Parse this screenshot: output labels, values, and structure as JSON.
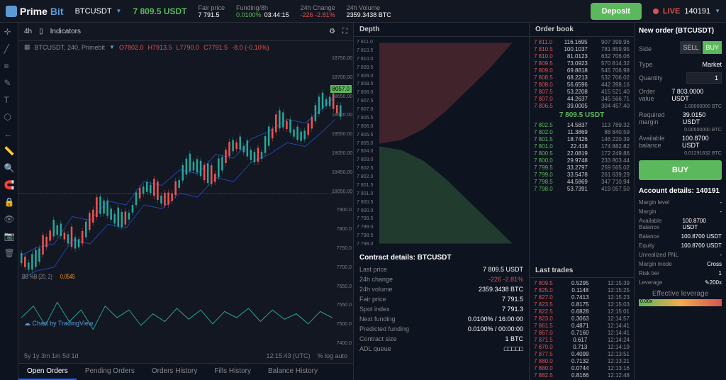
{
  "brand": {
    "name": "Prime",
    "suffix": "Bit"
  },
  "header": {
    "pair": "BTCUSDT",
    "price": "7 809.5 USDT",
    "fair_price_lbl": "Fair price",
    "fair_price": "7 791.5",
    "funding_lbl": "Funding/8h",
    "funding_rate": "0.0100%",
    "funding_time": "03:44:15",
    "change_lbl": "24h Change",
    "change": "-226 -2.81%",
    "volume_lbl": "24h Volume",
    "volume": "2359.3438 BTC",
    "deposit": "Deposit",
    "live": "LIVE",
    "account": "140191"
  },
  "chart": {
    "tf": "4h",
    "indicators": "Indicators",
    "info": "BTCUSDT, 240, Primebit",
    "o": "O7802.0",
    "h": "H7913.5",
    "l": "L7790.0",
    "c": "C7791.5",
    "chg": "-8.0 (-0.10%)",
    "bb": "BB %B (20, 2)",
    "bb_val": "0.0545",
    "price_tag": "8057.0",
    "ylabels": [
      "18750.00",
      "18700.00",
      "18650.00",
      "18500.00",
      "18550.00",
      "18050.00",
      "18450.00",
      "18050.00",
      "7900.0",
      "7800.0",
      "7750.0",
      "7700.0",
      "7650.0",
      "7550.0",
      "7500.0",
      "7400.0"
    ],
    "tv": "Chart by TradingView",
    "time_ranges": [
      "5y",
      "1y",
      "3m",
      "1m",
      "5d",
      "1d"
    ],
    "clock": "12:15:43 (UTC)",
    "scale": [
      "%",
      "log",
      "auto"
    ]
  },
  "tabs": [
    "Open Orders",
    "Pending Orders",
    "Orders History",
    "Fills History",
    "Balance History"
  ],
  "depth": {
    "title": "Depth",
    "labels": [
      "7 811.0",
      "7 810.5",
      "7 810.0",
      "7 809.5",
      "7 809.0",
      "7 808.5",
      "7 808.0",
      "7 807.5",
      "7 807.0",
      "7 806.5",
      "7 806.0",
      "7 805.5",
      "7 805.0",
      "7 804.0",
      "7 803.0",
      "7 802.5",
      "7 802.0",
      "7 801.5",
      "7 801.0",
      "7 800.5",
      "7 800.0",
      "7 799.5",
      "7 799.0",
      "7 798.5",
      "7 798.0"
    ]
  },
  "contract": {
    "title": "Contract details: BTCUSDT",
    "rows": [
      {
        "l": "Last price",
        "v": "7 809.5 USDT",
        "c": ""
      },
      {
        "l": "24h change",
        "v": "-226 -2.81%",
        "c": "r"
      },
      {
        "l": "24h volume",
        "v": "2359.3438 BTC",
        "c": ""
      },
      {
        "l": "Fair price",
        "v": "7 791.5",
        "c": ""
      },
      {
        "l": "Spot index",
        "v": "7 791.3",
        "c": ""
      },
      {
        "l": "Next funding",
        "v": "0.0100% / 16:00:00",
        "c": ""
      },
      {
        "l": "Predicted funding",
        "v": "0.0100% / 00:00:00",
        "c": ""
      },
      {
        "l": "Contract size",
        "v": "1 BTC",
        "c": ""
      },
      {
        "l": "ADL queue",
        "v": "□□□□□",
        "c": ""
      }
    ]
  },
  "orderbook": {
    "title": "Order book",
    "asks": [
      {
        "p": "7 811.0",
        "s": "116.1695",
        "t": "907 399.96"
      },
      {
        "p": "7 810.5",
        "s": "100.1037",
        "t": "781 859.95"
      },
      {
        "p": "7 810.0",
        "s": "81.0123",
        "t": "632 706.06"
      },
      {
        "p": "7 809.5",
        "s": "73.0923",
        "t": "570 814.32"
      },
      {
        "p": "7 809.0",
        "s": "69.8818",
        "t": "545 706.98"
      },
      {
        "p": "7 808.5",
        "s": "68.2213",
        "t": "532 706.02"
      },
      {
        "p": "7 808.0",
        "s": "56.6596",
        "t": "442 398.16"
      },
      {
        "p": "7 807.5",
        "s": "53.2208",
        "t": "415 521.40"
      },
      {
        "p": "7 807.0",
        "s": "44.2637",
        "t": "345 566.71"
      },
      {
        "p": "7 806.5",
        "s": "39.0005",
        "t": "304 457.40"
      }
    ],
    "mid": "7 809.5 USDT",
    "bids": [
      {
        "p": "7 802.5",
        "s": "14.5837",
        "t": "113 789.32"
      },
      {
        "p": "7 802.0",
        "s": "11.3869",
        "t": "88 840.59"
      },
      {
        "p": "7 801.5",
        "s": "18.7426",
        "t": "146 220.39"
      },
      {
        "p": "7 801.0",
        "s": "22.418",
        "t": "174 882.82"
      },
      {
        "p": "7 800.5",
        "s": "22.0819",
        "t": "172 249.86"
      },
      {
        "p": "7 800.0",
        "s": "29.9748",
        "t": "233 803.44"
      },
      {
        "p": "7 799.5",
        "s": "33.2797",
        "t": "259 565.02"
      },
      {
        "p": "7 799.0",
        "s": "33.5478",
        "t": "261 639.29"
      },
      {
        "p": "7 798.5",
        "s": "44.5869",
        "t": "347 710.94"
      },
      {
        "p": "7 798.0",
        "s": "53.7391",
        "t": "419 057.50"
      }
    ]
  },
  "trades": {
    "title": "Last trades",
    "rows": [
      {
        "p": "7 809.5",
        "s": "0.5295",
        "t": "12:15:39"
      },
      {
        "p": "7 825.0",
        "s": "0.1148",
        "t": "12:15:25"
      },
      {
        "p": "7 827.0",
        "s": "0.7413",
        "t": "12:15:23"
      },
      {
        "p": "7 823.5",
        "s": "0.8175",
        "t": "12:15:03"
      },
      {
        "p": "7 822.5",
        "s": "0.6828",
        "t": "12:15:01"
      },
      {
        "p": "7 823.0",
        "s": "0.3063",
        "t": "12:14:57"
      },
      {
        "p": "7 861.5",
        "s": "0.4871",
        "t": "12:14:41"
      },
      {
        "p": "7 867.0",
        "s": "0.7160",
        "t": "12:14:41"
      },
      {
        "p": "7 871.5",
        "s": "0.617",
        "t": "12:14:24"
      },
      {
        "p": "7 870.0",
        "s": "0.713",
        "t": "12:14:19"
      },
      {
        "p": "7 877.5",
        "s": "0.4099",
        "t": "12:13:51"
      },
      {
        "p": "7 880.0",
        "s": "0.7132",
        "t": "12:13:21"
      },
      {
        "p": "7 880.0",
        "s": "0.0744",
        "t": "12:13:16"
      },
      {
        "p": "7 882.5",
        "s": "0.8166",
        "t": "12:12:48"
      }
    ]
  },
  "order": {
    "title": "New order (BTCUSDT)",
    "side_lbl": "Side",
    "sell": "SELL",
    "buy": "BUY",
    "type_lbl": "Type",
    "type_val": "Market",
    "qty_lbl": "Quantity",
    "qty_val": "1",
    "ov_lbl": "Order value",
    "ov_val": "7 803.0000 USDT",
    "ov_sub": "1.00000000 BTC",
    "rm_lbl": "Required margin",
    "rm_val": "39.0150 USDT",
    "rm_sub": "0.00500000 BTC",
    "ab_lbl": "Available balance",
    "ab_val": "100.8700 USDT",
    "ab_sub": "0.01291632 BTC",
    "submit": "BUY"
  },
  "account": {
    "title": "Account details: 140191",
    "rows": [
      {
        "l": "Margin level",
        "v": "-"
      },
      {
        "l": "Margin",
        "v": "-"
      },
      {
        "l": "Available Balance",
        "v": "100.8700 USDT"
      },
      {
        "l": "Balance",
        "v": "100.8700 USDT"
      },
      {
        "l": "Equity",
        "v": "100.8700 USDT"
      },
      {
        "l": "Unrealized PNL",
        "v": "-"
      },
      {
        "l": "Margin mode",
        "v": "Cross"
      },
      {
        "l": "Risk tier",
        "v": "1"
      },
      {
        "l": "Leverage",
        "v": "✎200x"
      }
    ],
    "eff_lev_lbl": "Effective leverage",
    "eff_lev": "0.00x"
  }
}
